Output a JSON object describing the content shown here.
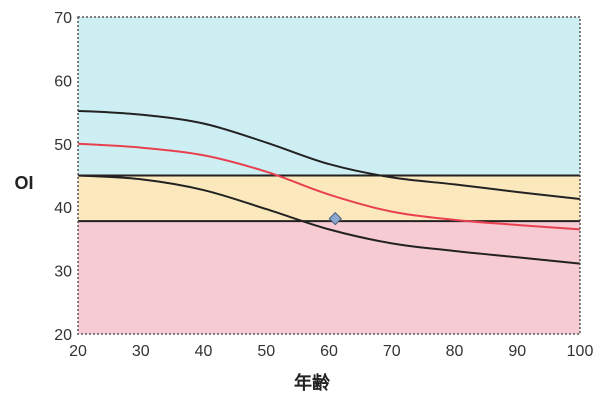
{
  "chart_data": {
    "type": "line",
    "xlabel": "年齢",
    "ylabel": "OI",
    "xlim": [
      20,
      100
    ],
    "ylim": [
      20,
      70
    ],
    "x_ticks": [
      20,
      30,
      40,
      50,
      60,
      70,
      80,
      90,
      100
    ],
    "y_ticks": [
      20,
      30,
      40,
      50,
      60,
      70
    ],
    "grid": false,
    "bands": [
      {
        "from": 45,
        "to": 70,
        "color": "#cdeef2"
      },
      {
        "from": 37.8,
        "to": 45,
        "color": "#fbe9bd"
      },
      {
        "from": 20,
        "to": 37.8,
        "color": "#f7cbd3"
      }
    ],
    "reference_lines": [
      {
        "y": 45,
        "color": "#222222"
      },
      {
        "y": 37.8,
        "color": "#222222"
      }
    ],
    "series": [
      {
        "color": "#222222",
        "points": [
          [
            20,
            55.2
          ],
          [
            30,
            54.6
          ],
          [
            40,
            53.2
          ],
          [
            50,
            50.2
          ],
          [
            60,
            46.8
          ],
          [
            70,
            44.7
          ],
          [
            80,
            43.6
          ],
          [
            90,
            42.4
          ],
          [
            100,
            41.3
          ]
        ]
      },
      {
        "color": "#e8404f",
        "points": [
          [
            20,
            50.0
          ],
          [
            30,
            49.4
          ],
          [
            40,
            48.2
          ],
          [
            50,
            45.6
          ],
          [
            60,
            42.0
          ],
          [
            70,
            39.3
          ],
          [
            80,
            38.0
          ],
          [
            90,
            37.2
          ],
          [
            100,
            36.5
          ]
        ]
      },
      {
        "color": "#222222",
        "points": [
          [
            20,
            45.0
          ],
          [
            30,
            44.4
          ],
          [
            40,
            42.7
          ],
          [
            50,
            39.7
          ],
          [
            60,
            36.5
          ],
          [
            70,
            34.3
          ],
          [
            80,
            33.1
          ],
          [
            90,
            32.1
          ],
          [
            100,
            31.1
          ]
        ]
      }
    ],
    "marker": {
      "x": 61,
      "y": 38.2,
      "color": "#8aa6cf"
    }
  }
}
